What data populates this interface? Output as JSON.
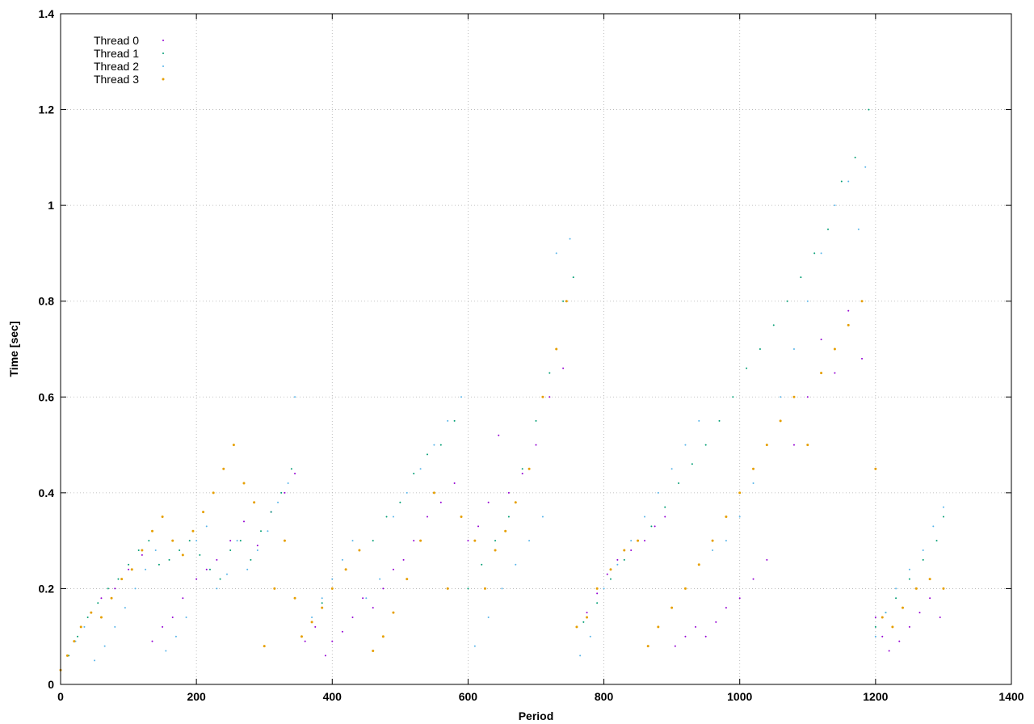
{
  "chart_data": {
    "type": "scatter",
    "title": "",
    "xlabel": "Period",
    "ylabel": "Time [sec]",
    "xlim": [
      0,
      1400
    ],
    "ylim": [
      0,
      1.4
    ],
    "xticks": [
      0,
      200,
      400,
      600,
      800,
      1000,
      1200,
      1400
    ],
    "yticks": [
      0,
      0.2,
      0.4,
      0.6,
      0.8,
      1,
      1.2,
      1.4
    ],
    "xtick_labels": [
      "0",
      "200",
      "400",
      "600",
      "800",
      "1000",
      "1200",
      "1400"
    ],
    "ytick_labels": [
      "0",
      "0.2",
      "0.4",
      "0.6",
      "0.8",
      "1",
      "1.2",
      "1.4"
    ],
    "grid": true,
    "legend_position": "top-left",
    "series": [
      {
        "name": "Thread 0",
        "color": "#9400d3",
        "x": [
          0,
          10,
          20,
          30,
          45,
          60,
          80,
          100,
          120,
          135,
          150,
          165,
          180,
          200,
          215,
          230,
          250,
          270,
          290,
          310,
          330,
          345,
          360,
          375,
          390,
          400,
          415,
          430,
          445,
          460,
          475,
          490,
          505,
          520,
          540,
          560,
          580,
          600,
          615,
          630,
          645,
          660,
          680,
          700,
          720,
          740,
          760,
          775,
          790,
          805,
          820,
          840,
          860,
          875,
          890,
          905,
          920,
          935,
          950,
          965,
          980,
          1000,
          1020,
          1040,
          1060,
          1080,
          1100,
          1120,
          1140,
          1160,
          1180,
          1200,
          1210,
          1220,
          1235,
          1250,
          1265,
          1280,
          1295
        ],
        "y": [
          0.03,
          0.06,
          0.09,
          0.12,
          0.15,
          0.18,
          0.2,
          0.24,
          0.27,
          0.09,
          0.12,
          0.14,
          0.18,
          0.22,
          0.24,
          0.26,
          0.3,
          0.34,
          0.29,
          0.36,
          0.4,
          0.44,
          0.09,
          0.12,
          0.06,
          0.09,
          0.11,
          0.14,
          0.18,
          0.16,
          0.2,
          0.24,
          0.26,
          0.3,
          0.35,
          0.38,
          0.42,
          0.3,
          0.33,
          0.38,
          0.52,
          0.4,
          0.44,
          0.5,
          0.6,
          0.66,
          0.12,
          0.15,
          0.19,
          0.23,
          0.26,
          0.28,
          0.3,
          0.33,
          0.35,
          0.08,
          0.1,
          0.12,
          0.1,
          0.13,
          0.16,
          0.18,
          0.22,
          0.26,
          0.55,
          0.5,
          0.6,
          0.72,
          0.65,
          0.78,
          0.68,
          0.14,
          0.1,
          0.07,
          0.09,
          0.12,
          0.15,
          0.18,
          0.14
        ]
      },
      {
        "name": "Thread 1",
        "color": "#009e73",
        "x": [
          0,
          12,
          25,
          40,
          55,
          70,
          85,
          100,
          115,
          130,
          145,
          160,
          175,
          190,
          205,
          220,
          235,
          250,
          265,
          280,
          295,
          310,
          325,
          340,
          355,
          370,
          385,
          400,
          420,
          440,
          460,
          480,
          500,
          520,
          540,
          560,
          580,
          600,
          620,
          640,
          660,
          680,
          700,
          720,
          740,
          755,
          770,
          790,
          810,
          830,
          850,
          870,
          890,
          910,
          930,
          950,
          970,
          990,
          1010,
          1030,
          1050,
          1070,
          1090,
          1110,
          1130,
          1150,
          1170,
          1190,
          1200,
          1215,
          1230,
          1250,
          1270,
          1290,
          1300
        ],
        "y": [
          0.03,
          0.06,
          0.1,
          0.14,
          0.17,
          0.2,
          0.22,
          0.25,
          0.28,
          0.3,
          0.25,
          0.26,
          0.28,
          0.3,
          0.27,
          0.24,
          0.22,
          0.28,
          0.3,
          0.26,
          0.32,
          0.36,
          0.4,
          0.45,
          0.1,
          0.13,
          0.17,
          0.2,
          0.24,
          0.28,
          0.3,
          0.35,
          0.38,
          0.44,
          0.48,
          0.5,
          0.55,
          0.2,
          0.25,
          0.3,
          0.35,
          0.45,
          0.55,
          0.65,
          0.8,
          0.85,
          0.13,
          0.17,
          0.22,
          0.26,
          0.3,
          0.33,
          0.37,
          0.42,
          0.46,
          0.5,
          0.55,
          0.6,
          0.66,
          0.7,
          0.75,
          0.8,
          0.85,
          0.9,
          0.95,
          1.05,
          1.1,
          1.2,
          0.12,
          0.15,
          0.18,
          0.22,
          0.26,
          0.3,
          0.35
        ]
      },
      {
        "name": "Thread 2",
        "color": "#56b4e9",
        "x": [
          0,
          10,
          22,
          35,
          50,
          65,
          80,
          95,
          110,
          125,
          140,
          155,
          170,
          185,
          200,
          215,
          230,
          245,
          260,
          275,
          290,
          305,
          320,
          335,
          345,
          355,
          370,
          385,
          400,
          415,
          430,
          450,
          470,
          490,
          510,
          530,
          550,
          570,
          590,
          610,
          630,
          650,
          670,
          690,
          710,
          730,
          750,
          765,
          780,
          800,
          820,
          840,
          860,
          880,
          900,
          920,
          940,
          960,
          980,
          1000,
          1020,
          1040,
          1060,
          1080,
          1100,
          1120,
          1140,
          1160,
          1175,
          1185,
          1200,
          1215,
          1230,
          1250,
          1270,
          1285,
          1300
        ],
        "y": [
          0.03,
          0.06,
          0.09,
          0.12,
          0.05,
          0.08,
          0.12,
          0.16,
          0.2,
          0.24,
          0.28,
          0.07,
          0.1,
          0.14,
          0.3,
          0.33,
          0.2,
          0.23,
          0.3,
          0.24,
          0.28,
          0.32,
          0.38,
          0.42,
          0.6,
          0.1,
          0.14,
          0.18,
          0.22,
          0.26,
          0.3,
          0.18,
          0.22,
          0.35,
          0.4,
          0.45,
          0.5,
          0.55,
          0.6,
          0.08,
          0.14,
          0.2,
          0.25,
          0.3,
          0.35,
          0.9,
          0.93,
          0.06,
          0.1,
          0.2,
          0.25,
          0.3,
          0.35,
          0.4,
          0.45,
          0.5,
          0.55,
          0.28,
          0.3,
          0.35,
          0.42,
          0.5,
          0.6,
          0.7,
          0.8,
          0.9,
          1.0,
          1.05,
          0.95,
          1.08,
          0.1,
          0.15,
          0.2,
          0.24,
          0.28,
          0.33,
          0.37
        ]
      },
      {
        "name": "Thread 3",
        "color": "#e69f00",
        "x": [
          0,
          10,
          20,
          30,
          45,
          60,
          75,
          90,
          105,
          120,
          135,
          150,
          165,
          180,
          195,
          210,
          225,
          240,
          255,
          270,
          285,
          300,
          315,
          330,
          345,
          355,
          370,
          385,
          400,
          420,
          440,
          460,
          475,
          490,
          510,
          530,
          550,
          570,
          590,
          610,
          625,
          640,
          655,
          670,
          690,
          710,
          730,
          745,
          760,
          775,
          790,
          810,
          830,
          850,
          865,
          880,
          900,
          920,
          940,
          960,
          980,
          1000,
          1020,
          1040,
          1060,
          1080,
          1100,
          1120,
          1140,
          1160,
          1180,
          1200,
          1210,
          1225,
          1240,
          1260,
          1280,
          1300
        ],
        "y": [
          0.03,
          0.06,
          0.09,
          0.12,
          0.15,
          0.14,
          0.18,
          0.22,
          0.24,
          0.28,
          0.32,
          0.35,
          0.3,
          0.27,
          0.32,
          0.36,
          0.4,
          0.45,
          0.5,
          0.42,
          0.38,
          0.08,
          0.2,
          0.3,
          0.18,
          0.1,
          0.13,
          0.16,
          0.2,
          0.24,
          0.28,
          0.07,
          0.1,
          0.15,
          0.22,
          0.3,
          0.4,
          0.2,
          0.35,
          0.3,
          0.2,
          0.28,
          0.32,
          0.38,
          0.45,
          0.6,
          0.7,
          0.8,
          0.12,
          0.14,
          0.2,
          0.24,
          0.28,
          0.3,
          0.08,
          0.12,
          0.16,
          0.2,
          0.25,
          0.3,
          0.35,
          0.4,
          0.45,
          0.5,
          0.55,
          0.6,
          0.5,
          0.65,
          0.7,
          0.75,
          0.8,
          0.45,
          0.14,
          0.12,
          0.16,
          0.2,
          0.22,
          0.2
        ]
      }
    ]
  }
}
